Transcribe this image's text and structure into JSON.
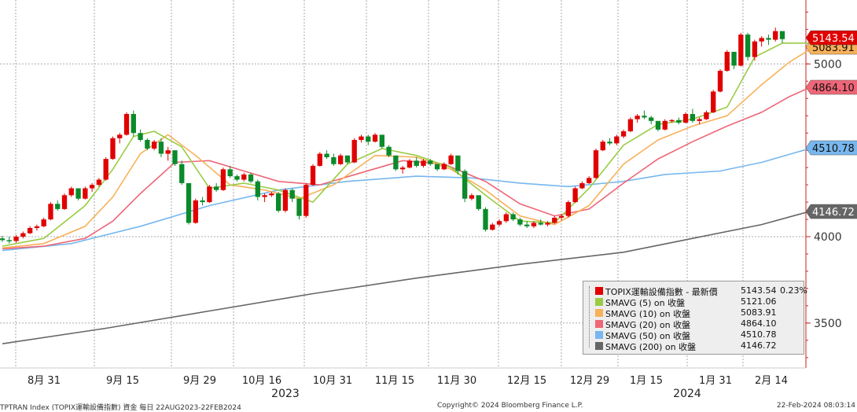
{
  "chart_data": {
    "type": "candlestick",
    "x_tick_labels": [
      "8月 31",
      "9月 15",
      "9月 29",
      "10月 16",
      "10月 31",
      "11月 15",
      "11月 30",
      "12月 15",
      "12月 29",
      "1月 15",
      "1月 31",
      "2月 14"
    ],
    "year_labels": [
      "2023",
      "2024"
    ],
    "y_ticks": [
      3500,
      4000,
      5000
    ],
    "ylim": [
      3240,
      5370
    ],
    "candles": [
      [
        3990,
        4005,
        3970,
        3980
      ],
      [
        3980,
        4000,
        3960,
        3975
      ],
      [
        3975,
        4010,
        3965,
        4000
      ],
      [
        4000,
        4030,
        3990,
        4020
      ],
      [
        4020,
        4060,
        4015,
        4050
      ],
      [
        4050,
        4070,
        4035,
        4060
      ],
      [
        4060,
        4110,
        4055,
        4100
      ],
      [
        4100,
        4200,
        4095,
        4190
      ],
      [
        4190,
        4210,
        4150,
        4160
      ],
      [
        4160,
        4250,
        4155,
        4240
      ],
      [
        4240,
        4290,
        4230,
        4280
      ],
      [
        4280,
        4270,
        4210,
        4220
      ],
      [
        4220,
        4290,
        4215,
        4280
      ],
      [
        4280,
        4310,
        4260,
        4300
      ],
      [
        4300,
        4340,
        4290,
        4330
      ],
      [
        4330,
        4460,
        4325,
        4450
      ],
      [
        4450,
        4580,
        4445,
        4570
      ],
      [
        4570,
        4600,
        4540,
        4590
      ],
      [
        4590,
        4720,
        4585,
        4710
      ],
      [
        4710,
        4730,
        4580,
        4600
      ],
      [
        4600,
        4620,
        4550,
        4560
      ],
      [
        4560,
        4570,
        4500,
        4510
      ],
      [
        4510,
        4560,
        4500,
        4550
      ],
      [
        4550,
        4570,
        4460,
        4480
      ],
      [
        4480,
        4520,
        4440,
        4500
      ],
      [
        4500,
        4500,
        4410,
        4420
      ],
      [
        4420,
        4440,
        4300,
        4310
      ],
      [
        4310,
        4310,
        4070,
        4080
      ],
      [
        4080,
        4220,
        4075,
        4210
      ],
      [
        4210,
        4230,
        4180,
        4200
      ],
      [
        4200,
        4300,
        4195,
        4290
      ],
      [
        4290,
        4310,
        4260,
        4270
      ],
      [
        4270,
        4400,
        4265,
        4390
      ],
      [
        4390,
        4410,
        4340,
        4350
      ],
      [
        4350,
        4360,
        4320,
        4330
      ],
      [
        4330,
        4370,
        4320,
        4360
      ],
      [
        4360,
        4370,
        4310,
        4320
      ],
      [
        4320,
        4330,
        4210,
        4230
      ],
      [
        4230,
        4250,
        4200,
        4240
      ],
      [
        4240,
        4260,
        4230,
        4250
      ],
      [
        4250,
        4260,
        4140,
        4150
      ],
      [
        4150,
        4280,
        4140,
        4270
      ],
      [
        4270,
        4280,
        4200,
        4220
      ],
      [
        4220,
        4210,
        4100,
        4120
      ],
      [
        4120,
        4310,
        4110,
        4300
      ],
      [
        4300,
        4420,
        4295,
        4410
      ],
      [
        4410,
        4490,
        4405,
        4480
      ],
      [
        4480,
        4500,
        4450,
        4460
      ],
      [
        4460,
        4480,
        4410,
        4420
      ],
      [
        4420,
        4480,
        4415,
        4470
      ],
      [
        4470,
        4470,
        4420,
        4430
      ],
      [
        4430,
        4570,
        4425,
        4560
      ],
      [
        4560,
        4590,
        4545,
        4580
      ],
      [
        4580,
        4590,
        4530,
        4550
      ],
      [
        4550,
        4600,
        4545,
        4590
      ],
      [
        4590,
        4580,
        4510,
        4520
      ],
      [
        4520,
        4530,
        4460,
        4470
      ],
      [
        4470,
        4460,
        4380,
        4390
      ],
      [
        4390,
        4410,
        4365,
        4400
      ],
      [
        4400,
        4450,
        4395,
        4440
      ],
      [
        4440,
        4460,
        4400,
        4410
      ],
      [
        4410,
        4450,
        4400,
        4440
      ],
      [
        4440,
        4450,
        4410,
        4420
      ],
      [
        4420,
        4410,
        4380,
        4390
      ],
      [
        4390,
        4430,
        4385,
        4420
      ],
      [
        4420,
        4480,
        4415,
        4470
      ],
      [
        4470,
        4460,
        4360,
        4380
      ],
      [
        4380,
        4390,
        4200,
        4220
      ],
      [
        4220,
        4250,
        4210,
        4240
      ],
      [
        4240,
        4230,
        4150,
        4160
      ],
      [
        4160,
        4170,
        4030,
        4040
      ],
      [
        4040,
        4080,
        4035,
        4070
      ],
      [
        4070,
        4100,
        4060,
        4090
      ],
      [
        4090,
        4140,
        4080,
        4130
      ],
      [
        4130,
        4140,
        4090,
        4100
      ],
      [
        4100,
        4110,
        4060,
        4070
      ],
      [
        4070,
        4090,
        4050,
        4060
      ],
      [
        4060,
        4090,
        4050,
        4080
      ],
      [
        4080,
        4100,
        4065,
        4070
      ],
      [
        4070,
        4090,
        4060,
        4080
      ],
      [
        4080,
        4120,
        4075,
        4110
      ],
      [
        4110,
        4130,
        4095,
        4120
      ],
      [
        4120,
        4210,
        4110,
        4200
      ],
      [
        4200,
        4290,
        4195,
        4280
      ],
      [
        4280,
        4320,
        4275,
        4310
      ],
      [
        4310,
        4350,
        4305,
        4340
      ],
      [
        4340,
        4510,
        4335,
        4500
      ],
      [
        4500,
        4560,
        4495,
        4550
      ],
      [
        4550,
        4570,
        4530,
        4540
      ],
      [
        4540,
        4590,
        4530,
        4580
      ],
      [
        4580,
        4620,
        4570,
        4610
      ],
      [
        4610,
        4690,
        4605,
        4680
      ],
      [
        4680,
        4710,
        4660,
        4700
      ],
      [
        4700,
        4730,
        4680,
        4690
      ],
      [
        4690,
        4700,
        4650,
        4670
      ],
      [
        4670,
        4660,
        4610,
        4620
      ],
      [
        4620,
        4680,
        4615,
        4670
      ],
      [
        4670,
        4680,
        4660,
        4675
      ],
      [
        4675,
        4690,
        4650,
        4660
      ],
      [
        4660,
        4720,
        4655,
        4710
      ],
      [
        4710,
        4740,
        4660,
        4670
      ],
      [
        4670,
        4690,
        4650,
        4680
      ],
      [
        4680,
        4730,
        4675,
        4720
      ],
      [
        4720,
        4850,
        4715,
        4840
      ],
      [
        4840,
        4970,
        4835,
        4960
      ],
      [
        4960,
        5080,
        4955,
        5070
      ],
      [
        5070,
        5060,
        4970,
        4990
      ],
      [
        4990,
        5180,
        4985,
        5170
      ],
      [
        5170,
        5180,
        5020,
        5040
      ],
      [
        5040,
        5140,
        5020,
        5130
      ],
      [
        5130,
        5160,
        5100,
        5150
      ],
      [
        5150,
        5170,
        5110,
        5140
      ],
      [
        5140,
        5210,
        5130,
        5190
      ],
      [
        5190,
        5190,
        5120,
        5143.54
      ]
    ],
    "series": [
      {
        "name": "SMAVG (5)  on 收盤",
        "color": "#99cc44",
        "last": 5121.06,
        "points": [
          [
            0,
            3945
          ],
          [
            6,
            3990
          ],
          [
            12,
            4180
          ],
          [
            16,
            4390
          ],
          [
            19,
            4580
          ],
          [
            22,
            4610
          ],
          [
            26,
            4520
          ],
          [
            30,
            4280
          ],
          [
            35,
            4310
          ],
          [
            40,
            4270
          ],
          [
            45,
            4200
          ],
          [
            50,
            4420
          ],
          [
            55,
            4510
          ],
          [
            60,
            4470
          ],
          [
            65,
            4400
          ],
          [
            70,
            4240
          ],
          [
            75,
            4090
          ],
          [
            80,
            4080
          ],
          [
            85,
            4280
          ],
          [
            90,
            4530
          ],
          [
            95,
            4650
          ],
          [
            100,
            4680
          ],
          [
            105,
            4750
          ],
          [
            109,
            5040
          ],
          [
            113,
            5120
          ],
          [
            117,
            5121.06
          ]
        ]
      },
      {
        "name": "SMAVG (10)  on 收盤",
        "color": "#f7b15a",
        "last": 5083.91,
        "points": [
          [
            0,
            3935
          ],
          [
            6,
            3960
          ],
          [
            12,
            4060
          ],
          [
            16,
            4230
          ],
          [
            20,
            4480
          ],
          [
            24,
            4590
          ],
          [
            28,
            4470
          ],
          [
            33,
            4300
          ],
          [
            38,
            4270
          ],
          [
            43,
            4220
          ],
          [
            48,
            4300
          ],
          [
            54,
            4470
          ],
          [
            60,
            4460
          ],
          [
            65,
            4390
          ],
          [
            70,
            4270
          ],
          [
            75,
            4120
          ],
          [
            80,
            4070
          ],
          [
            85,
            4180
          ],
          [
            90,
            4420
          ],
          [
            95,
            4560
          ],
          [
            100,
            4640
          ],
          [
            105,
            4700
          ],
          [
            110,
            4880
          ],
          [
            114,
            5010
          ],
          [
            117,
            5083.91
          ]
        ]
      },
      {
        "name": "SMAVG (20)  on 收盤",
        "color": "#ee6677",
        "last": 4864.1,
        "points": [
          [
            0,
            3930
          ],
          [
            6,
            3945
          ],
          [
            12,
            3990
          ],
          [
            16,
            4090
          ],
          [
            20,
            4250
          ],
          [
            25,
            4430
          ],
          [
            30,
            4440
          ],
          [
            35,
            4380
          ],
          [
            40,
            4320
          ],
          [
            46,
            4300
          ],
          [
            52,
            4370
          ],
          [
            58,
            4440
          ],
          [
            64,
            4420
          ],
          [
            70,
            4320
          ],
          [
            75,
            4190
          ],
          [
            80,
            4120
          ],
          [
            85,
            4160
          ],
          [
            90,
            4310
          ],
          [
            95,
            4450
          ],
          [
            100,
            4550
          ],
          [
            105,
            4640
          ],
          [
            110,
            4720
          ],
          [
            114,
            4810
          ],
          [
            117,
            4864.1
          ]
        ]
      },
      {
        "name": "SMAVG (50)  on 收盤",
        "color": "#77b7ee",
        "last": 4510.78,
        "points": [
          [
            0,
            3920
          ],
          [
            10,
            3960
          ],
          [
            20,
            4060
          ],
          [
            30,
            4180
          ],
          [
            40,
            4270
          ],
          [
            50,
            4320
          ],
          [
            60,
            4350
          ],
          [
            68,
            4340
          ],
          [
            75,
            4310
          ],
          [
            82,
            4290
          ],
          [
            90,
            4320
          ],
          [
            96,
            4360
          ],
          [
            104,
            4380
          ],
          [
            110,
            4430
          ],
          [
            117,
            4510.78
          ]
        ]
      },
      {
        "name": "SMAVG (200)  on 收盤",
        "color": "#666666",
        "last": 4146.72,
        "points": [
          [
            0,
            3380
          ],
          [
            15,
            3470
          ],
          [
            30,
            3570
          ],
          [
            45,
            3670
          ],
          [
            60,
            3760
          ],
          [
            75,
            3840
          ],
          [
            90,
            3910
          ],
          [
            100,
            3990
          ],
          [
            110,
            4070
          ],
          [
            117,
            4146.72
          ]
        ]
      }
    ]
  },
  "legend": {
    "main": {
      "name": "TOPIX運輸設備指數 - 最新價",
      "value": "5143.54",
      "pct": "0.23%",
      "color": "#e00000"
    },
    "rows": [
      {
        "name": "SMAVG (5)  on 收盤",
        "value": "5121.06",
        "color": "#99cc44"
      },
      {
        "name": "SMAVG (10)  on 收盤",
        "value": "5083.91",
        "color": "#f7b15a"
      },
      {
        "name": "SMAVG (20)  on 收盤",
        "value": "4864.10",
        "color": "#ee6677"
      },
      {
        "name": "SMAVG (50)  on 收盤",
        "value": "4510.78",
        "color": "#77b7ee"
      },
      {
        "name": "SMAVG (200)  on 收盤",
        "value": "4146.72",
        "color": "#666666"
      }
    ]
  },
  "value_tags": [
    {
      "label": "5083.91",
      "value": 5083.91,
      "bg": "#f7b15a",
      "fg": "#111111"
    },
    {
      "label": "5143.54",
      "value": 5143.54,
      "bg": "#e00000",
      "fg": "#ffffff"
    },
    {
      "label": "4864.10",
      "value": 4864.1,
      "bg": "#ee6677",
      "fg": "#111111"
    },
    {
      "label": "4510.78",
      "value": 4510.78,
      "bg": "#77b7ee",
      "fg": "#111111"
    },
    {
      "label": "4146.72",
      "value": 4146.72,
      "bg": "#666666",
      "fg": "#ffffff"
    }
  ],
  "footer": {
    "left": "TPTRAN Index (TOPIX運輸設備指數) 資金  每日 22AUG2023-22FEB2024",
    "center": "Copyright© 2024 Bloomberg Finance L.P.",
    "right": "22-Feb-2024 08:03:14"
  },
  "colors": {
    "up": "#e00000",
    "down": "#0a8a2a",
    "grid": "#aaaaaa",
    "axis": "#cc2222"
  }
}
